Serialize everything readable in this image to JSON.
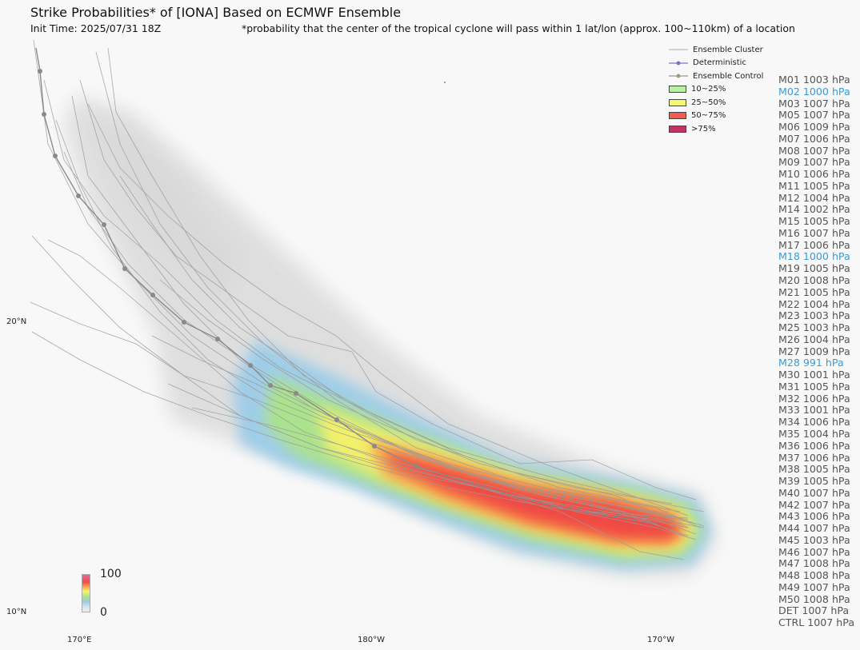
{
  "title": "Strike Probabilities* of [IONA] Based on ECMWF Ensemble",
  "init_time": "Init Time: 2025/07/31 18Z",
  "footnote": "*probability that the center of the tropical cyclone will pass within 1 lat/lon (approx. 100~110km) of a location",
  "lat_labels": [
    "20°N",
    "10°N"
  ],
  "lon_labels": [
    "170°E",
    "180°W",
    "170°W"
  ],
  "legend": {
    "cluster": "Ensemble Cluster",
    "deterministic": "Deterministic",
    "control": "Ensemble Control",
    "bins": [
      "10~25%",
      "25~50%",
      "50~75%",
      ">75%"
    ],
    "bin_colors": [
      "#b7f0a6",
      "#f7f76e",
      "#f45a52",
      "#c0335f"
    ]
  },
  "colorbar": {
    "max": "100",
    "min": "0"
  },
  "members": [
    {
      "text": "M01 1003 hPa",
      "hl": false
    },
    {
      "text": "M02 1000 hPa",
      "hl": true
    },
    {
      "text": "M03 1007 hPa",
      "hl": false
    },
    {
      "text": "M05 1007 hPa",
      "hl": false
    },
    {
      "text": "M06 1009 hPa",
      "hl": false
    },
    {
      "text": "M07 1006 hPa",
      "hl": false
    },
    {
      "text": "M08 1007 hPa",
      "hl": false
    },
    {
      "text": "M09 1007 hPa",
      "hl": false
    },
    {
      "text": "M10 1006 hPa",
      "hl": false
    },
    {
      "text": "M11 1005 hPa",
      "hl": false
    },
    {
      "text": "M12 1004 hPa",
      "hl": false
    },
    {
      "text": "M14 1002 hPa",
      "hl": false
    },
    {
      "text": "M15 1005 hPa",
      "hl": false
    },
    {
      "text": "M16 1007 hPa",
      "hl": false
    },
    {
      "text": "M17 1006 hPa",
      "hl": false
    },
    {
      "text": "M18 1000 hPa",
      "hl": true
    },
    {
      "text": "M19 1005 hPa",
      "hl": false
    },
    {
      "text": "M20 1008 hPa",
      "hl": false
    },
    {
      "text": "M21 1005 hPa",
      "hl": false
    },
    {
      "text": "M22 1004 hPa",
      "hl": false
    },
    {
      "text": "M23 1003 hPa",
      "hl": false
    },
    {
      "text": "M25 1003 hPa",
      "hl": false
    },
    {
      "text": "M26 1004 hPa",
      "hl": false
    },
    {
      "text": "M27 1009 hPa",
      "hl": false
    },
    {
      "text": "M28 991 hPa",
      "hl": true
    },
    {
      "text": "M30 1001 hPa",
      "hl": false
    },
    {
      "text": "M31 1005 hPa",
      "hl": false
    },
    {
      "text": "M32 1006 hPa",
      "hl": false
    },
    {
      "text": "M33 1001 hPa",
      "hl": false
    },
    {
      "text": "M34 1006 hPa",
      "hl": false
    },
    {
      "text": "M35 1004 hPa",
      "hl": false
    },
    {
      "text": "M36 1006 hPa",
      "hl": false
    },
    {
      "text": "M37 1006 hPa",
      "hl": false
    },
    {
      "text": "M38 1005 hPa",
      "hl": false
    },
    {
      "text": "M39 1005 hPa",
      "hl": false
    },
    {
      "text": "M40 1007 hPa",
      "hl": false
    },
    {
      "text": "M42 1007 hPa",
      "hl": false
    },
    {
      "text": "M43 1006 hPa",
      "hl": false
    },
    {
      "text": "M44 1007 hPa",
      "hl": false
    },
    {
      "text": "M45 1003 hPa",
      "hl": false
    },
    {
      "text": "M46 1007 hPa",
      "hl": false
    },
    {
      "text": "M47 1008 hPa",
      "hl": false
    },
    {
      "text": "M48 1008 hPa",
      "hl": false
    },
    {
      "text": "M49 1007 hPa",
      "hl": false
    },
    {
      "text": "M50 1008 hPa",
      "hl": false
    },
    {
      "text": "DET 1007 hPa",
      "hl": false
    },
    {
      "text": "CTRL 1007 hPa",
      "hl": false
    }
  ]
}
